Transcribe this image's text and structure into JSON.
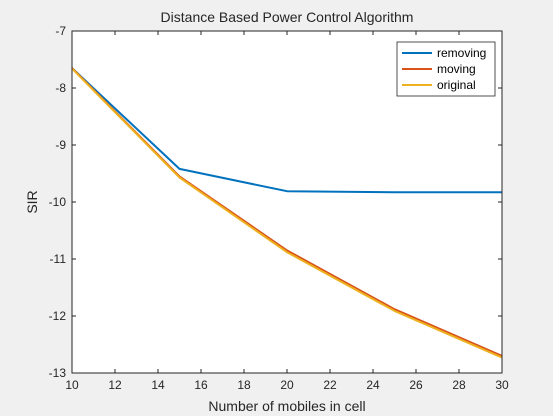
{
  "chart_data": {
    "type": "line",
    "title": "Distance Based Power Control Algorithm",
    "xlabel": "Number of mobiles in cell",
    "ylabel": "SIR",
    "xlim": [
      10,
      30
    ],
    "ylim": [
      -13,
      -7
    ],
    "xticks": [
      10,
      12,
      14,
      16,
      18,
      20,
      22,
      24,
      26,
      28,
      30
    ],
    "yticks": [
      -13,
      -12,
      -11,
      -10,
      -9,
      -8,
      -7
    ],
    "grid": false,
    "legend_position": "top-right",
    "x": [
      10,
      15,
      20,
      25,
      30
    ],
    "series": [
      {
        "name": "removing",
        "color": "#0072BD",
        "values": [
          -7.65,
          -9.42,
          -9.81,
          -9.83,
          -9.83
        ]
      },
      {
        "name": "moving",
        "color": "#D95319",
        "values": [
          -7.65,
          -9.55,
          -10.85,
          -11.88,
          -12.7
        ]
      },
      {
        "name": "original",
        "color": "#EDB120",
        "values": [
          -7.66,
          -9.57,
          -10.88,
          -11.91,
          -12.73
        ]
      }
    ]
  }
}
